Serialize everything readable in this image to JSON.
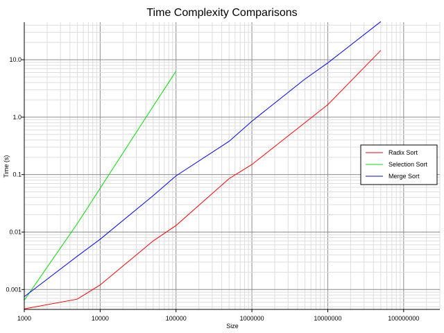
{
  "chart_data": {
    "type": "line",
    "title": "Time Complexity Comparisons",
    "xlabel": "Size",
    "ylabel": "Time (s)",
    "x_scale": "log",
    "y_scale": "log",
    "xlim": [
      1000,
      300000000
    ],
    "ylim": [
      0.00045,
      45
    ],
    "grid": true,
    "legend_position": "right",
    "x_ticks": [
      {
        "value": 1000,
        "label": "1000"
      },
      {
        "value": 10000,
        "label": "10000"
      },
      {
        "value": 100000,
        "label": "100000"
      },
      {
        "value": 1000000,
        "label": "1000000"
      },
      {
        "value": 10000000,
        "label": "10000000"
      },
      {
        "value": 100000000,
        "label": "100000000"
      }
    ],
    "y_ticks": [
      {
        "value": 0.001,
        "label": "0.001"
      },
      {
        "value": 0.01,
        "label": "0.01"
      },
      {
        "value": 0.1,
        "label": "0.1"
      },
      {
        "value": 1,
        "label": "1.0"
      },
      {
        "value": 10,
        "label": "10.0"
      }
    ],
    "series": [
      {
        "name": "Radix Sort",
        "color": "#ff0000",
        "x": [
          1000,
          5000,
          10000,
          50000,
          100000,
          500000,
          1000000,
          5000000,
          10000000,
          50000000
        ],
        "y": [
          0.00046,
          0.00068,
          0.0012,
          0.007,
          0.013,
          0.085,
          0.15,
          0.8,
          1.65,
          14.5
        ]
      },
      {
        "name": "Selection Sort",
        "color": "#00dd00",
        "x": [
          1000,
          5000,
          10000,
          50000,
          100000
        ],
        "y": [
          0.00065,
          0.014,
          0.058,
          1.55,
          6.3
        ]
      },
      {
        "name": "Merge Sort",
        "color": "#0000ff",
        "x": [
          1000,
          5000,
          10000,
          50000,
          100000,
          500000,
          1000000,
          5000000,
          10000000,
          50000000
        ],
        "y": [
          0.00075,
          0.0038,
          0.0075,
          0.043,
          0.095,
          0.38,
          0.85,
          4.6,
          8.8,
          46
        ]
      }
    ]
  }
}
